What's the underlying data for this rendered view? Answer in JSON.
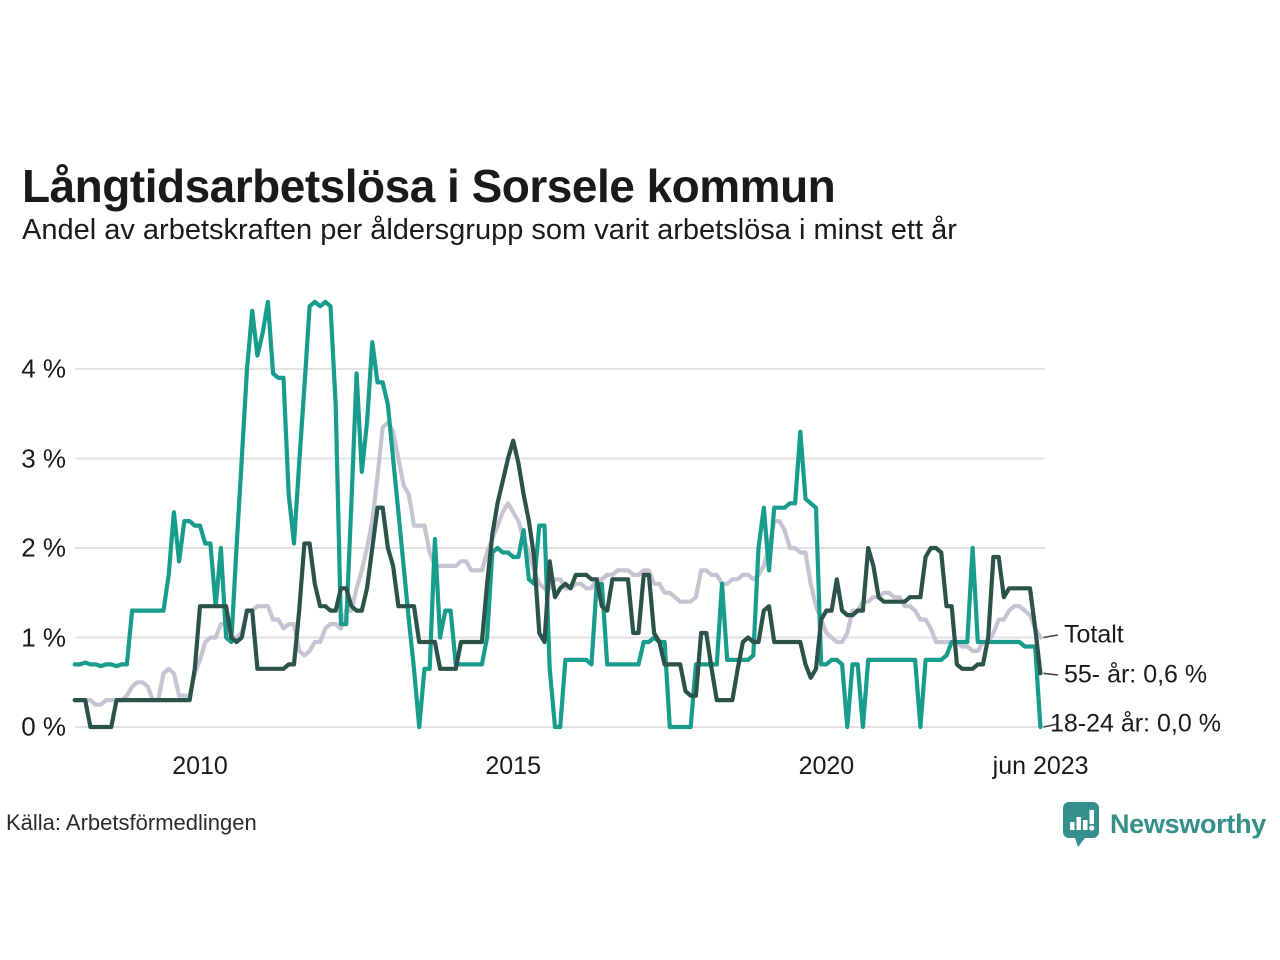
{
  "header": {
    "title": "Långtidsarbetslösa i Sorsele kommun",
    "subtitle": "Andel av arbetskraften per åldersgrupp som varit arbetslösa i minst ett år"
  },
  "footer": {
    "source": "Källa: Arbetsförmedlingen",
    "brand": "Newsworthy"
  },
  "colors": {
    "teal_series": "#189c8b",
    "dark_green_series": "#2c5349",
    "gray_series": "#c6c4d2",
    "gridline": "#e2e2e6",
    "brand_teal": "#35908b",
    "connector": "#444444"
  },
  "chart_data": {
    "type": "line",
    "title": "Långtidsarbetslösa i Sorsele kommun",
    "subtitle": "Andel av arbetskraften per åldersgrupp som varit arbetslösa i minst ett år",
    "unit": "% av arbetskraften",
    "frequency": "monthly",
    "x_start": "2008-01",
    "x_end": "2023-06",
    "ylim": [
      0,
      4.85
    ],
    "grid": "horizontal",
    "legend_position": "right-end-labels",
    "y_ticks": [
      {
        "value": 0,
        "label": "0 %"
      },
      {
        "value": 1,
        "label": "1 %"
      },
      {
        "value": 2,
        "label": "2 %"
      },
      {
        "value": 3,
        "label": "3 %"
      },
      {
        "value": 4,
        "label": "4 %"
      }
    ],
    "x_ticks": [
      {
        "position": 2010,
        "label": "2010"
      },
      {
        "position": 2015,
        "label": "2015"
      },
      {
        "position": 2020,
        "label": "2020"
      },
      {
        "position": 2023.42,
        "label": "jun 2023"
      }
    ],
    "series": [
      {
        "name": "Totalt",
        "color": "#c6c4d2",
        "end_label": "Totalt",
        "end_value": 1.0,
        "values": [
          0.3,
          0.3,
          0.3,
          0.3,
          0.25,
          0.25,
          0.3,
          0.3,
          0.3,
          0.3,
          0.35,
          0.45,
          0.5,
          0.5,
          0.45,
          0.3,
          0.3,
          0.6,
          0.65,
          0.6,
          0.35,
          0.35,
          0.35,
          0.6,
          0.75,
          0.95,
          1.0,
          1.0,
          1.15,
          1.15,
          1.0,
          1.0,
          1.05,
          1.3,
          1.3,
          1.35,
          1.35,
          1.35,
          1.2,
          1.2,
          1.1,
          1.15,
          1.15,
          0.85,
          0.8,
          0.85,
          0.95,
          0.95,
          1.1,
          1.15,
          1.15,
          1.1,
          1.3,
          1.3,
          1.55,
          1.75,
          2.0,
          2.3,
          2.8,
          3.35,
          3.4,
          3.3,
          3.0,
          2.7,
          2.6,
          2.25,
          2.25,
          2.25,
          1.95,
          1.8,
          1.8,
          1.8,
          1.8,
          1.8,
          1.85,
          1.85,
          1.75,
          1.75,
          1.75,
          1.95,
          2.1,
          2.25,
          2.4,
          2.5,
          2.4,
          2.3,
          2.1,
          1.95,
          1.75,
          1.6,
          1.55,
          1.55,
          1.65,
          1.65,
          1.55,
          1.55,
          1.6,
          1.6,
          1.55,
          1.55,
          1.65,
          1.65,
          1.7,
          1.7,
          1.75,
          1.75,
          1.75,
          1.7,
          1.7,
          1.75,
          1.75,
          1.6,
          1.6,
          1.5,
          1.5,
          1.45,
          1.4,
          1.4,
          1.4,
          1.45,
          1.75,
          1.75,
          1.7,
          1.7,
          1.6,
          1.6,
          1.65,
          1.65,
          1.7,
          1.7,
          1.65,
          1.7,
          1.8,
          2.0,
          2.3,
          2.3,
          2.2,
          2.0,
          2.0,
          1.95,
          1.95,
          1.6,
          1.35,
          1.2,
          1.05,
          1.0,
          0.95,
          0.95,
          1.05,
          1.3,
          1.3,
          1.4,
          1.4,
          1.45,
          1.45,
          1.5,
          1.5,
          1.45,
          1.45,
          1.35,
          1.35,
          1.3,
          1.2,
          1.2,
          1.1,
          0.95,
          0.95,
          0.95,
          0.95,
          0.95,
          0.9,
          0.9,
          0.85,
          0.85,
          0.95,
          0.95,
          1.05,
          1.2,
          1.2,
          1.3,
          1.35,
          1.35,
          1.3,
          1.25,
          1.1,
          1.0
        ]
      },
      {
        "name": "18-24 år",
        "color": "#189c8b",
        "end_label": "18-24 år: 0,0 %",
        "end_value": 0.0,
        "values": [
          0.7,
          0.7,
          0.72,
          0.7,
          0.7,
          0.68,
          0.7,
          0.7,
          0.68,
          0.7,
          0.7,
          1.3,
          1.3,
          1.3,
          1.3,
          1.3,
          1.3,
          1.3,
          1.7,
          2.4,
          1.85,
          2.3,
          2.3,
          2.25,
          2.25,
          2.05,
          2.05,
          1.35,
          2.0,
          1.0,
          0.95,
          2.0,
          3.0,
          4.0,
          4.65,
          4.15,
          4.4,
          4.75,
          3.95,
          3.9,
          3.9,
          2.6,
          2.05,
          2.95,
          3.8,
          4.7,
          4.75,
          4.7,
          4.75,
          4.7,
          3.6,
          1.15,
          1.15,
          2.5,
          3.95,
          2.85,
          3.4,
          4.3,
          3.85,
          3.85,
          3.6,
          3.0,
          2.4,
          1.8,
          1.2,
          0.65,
          0.0,
          0.65,
          0.65,
          2.1,
          1.0,
          1.3,
          1.3,
          0.7,
          0.7,
          0.7,
          0.7,
          0.7,
          0.7,
          1.0,
          1.95,
          2.0,
          1.95,
          1.95,
          1.9,
          1.9,
          2.2,
          1.65,
          1.6,
          2.25,
          2.25,
          0.65,
          0.0,
          0.0,
          0.75,
          0.75,
          0.75,
          0.75,
          0.75,
          0.7,
          1.6,
          1.6,
          0.7,
          0.7,
          0.7,
          0.7,
          0.7,
          0.7,
          0.7,
          0.95,
          0.95,
          1.0,
          0.95,
          0.95,
          0.0,
          0.0,
          0.0,
          0.0,
          0.0,
          0.7,
          0.7,
          0.7,
          0.7,
          0.7,
          1.6,
          0.75,
          0.75,
          0.75,
          0.75,
          0.75,
          0.8,
          2.0,
          2.45,
          1.75,
          2.45,
          2.45,
          2.45,
          2.5,
          2.5,
          3.3,
          2.55,
          2.5,
          2.45,
          0.7,
          0.7,
          0.75,
          0.75,
          0.7,
          0.0,
          0.7,
          0.7,
          0.0,
          0.75,
          0.75,
          0.75,
          0.75,
          0.75,
          0.75,
          0.75,
          0.75,
          0.75,
          0.75,
          0.0,
          0.75,
          0.75,
          0.75,
          0.75,
          0.8,
          0.95,
          0.95,
          0.95,
          0.95,
          2.0,
          0.95,
          0.95,
          0.95,
          0.95,
          0.95,
          0.95,
          0.95,
          0.95,
          0.95,
          0.9,
          0.9,
          0.9,
          0.0
        ]
      },
      {
        "name": "55- år",
        "color": "#2c5349",
        "end_label": "55- år: 0,6 %",
        "end_value": 0.6,
        "values": [
          0.3,
          0.3,
          0.3,
          0.0,
          0.0,
          0.0,
          0.0,
          0.0,
          0.3,
          0.3,
          0.3,
          0.3,
          0.3,
          0.3,
          0.3,
          0.3,
          0.3,
          0.3,
          0.3,
          0.3,
          0.3,
          0.3,
          0.3,
          0.65,
          1.35,
          1.35,
          1.35,
          1.35,
          1.35,
          1.35,
          1.0,
          0.95,
          1.0,
          1.3,
          1.3,
          0.65,
          0.65,
          0.65,
          0.65,
          0.65,
          0.65,
          0.7,
          0.7,
          1.3,
          2.05,
          2.05,
          1.6,
          1.35,
          1.35,
          1.3,
          1.3,
          1.55,
          1.55,
          1.35,
          1.3,
          1.3,
          1.55,
          2.0,
          2.45,
          2.45,
          2.0,
          1.8,
          1.35,
          1.35,
          1.35,
          1.35,
          0.95,
          0.95,
          0.95,
          0.95,
          0.65,
          0.65,
          0.65,
          0.65,
          0.95,
          0.95,
          0.95,
          0.95,
          0.95,
          1.6,
          2.15,
          2.5,
          2.75,
          3.0,
          3.2,
          2.95,
          2.6,
          2.3,
          1.9,
          1.05,
          0.95,
          1.85,
          1.45,
          1.55,
          1.6,
          1.55,
          1.7,
          1.7,
          1.7,
          1.65,
          1.65,
          1.35,
          1.3,
          1.65,
          1.65,
          1.65,
          1.65,
          1.05,
          1.05,
          1.7,
          1.7,
          1.05,
          0.95,
          0.7,
          0.7,
          0.7,
          0.7,
          0.4,
          0.35,
          0.35,
          1.05,
          1.05,
          0.65,
          0.3,
          0.3,
          0.3,
          0.3,
          0.65,
          0.95,
          1.0,
          0.95,
          0.95,
          1.3,
          1.35,
          0.95,
          0.95,
          0.95,
          0.95,
          0.95,
          0.95,
          0.7,
          0.55,
          0.65,
          1.2,
          1.3,
          1.3,
          1.65,
          1.3,
          1.25,
          1.25,
          1.3,
          1.3,
          2.0,
          1.8,
          1.45,
          1.4,
          1.4,
          1.4,
          1.4,
          1.4,
          1.45,
          1.45,
          1.45,
          1.9,
          2.0,
          2.0,
          1.95,
          1.35,
          1.35,
          0.7,
          0.65,
          0.65,
          0.65,
          0.7,
          0.7,
          1.0,
          1.9,
          1.9,
          1.45,
          1.55,
          1.55,
          1.55,
          1.55,
          1.55,
          1.1,
          0.6
        ]
      }
    ]
  }
}
